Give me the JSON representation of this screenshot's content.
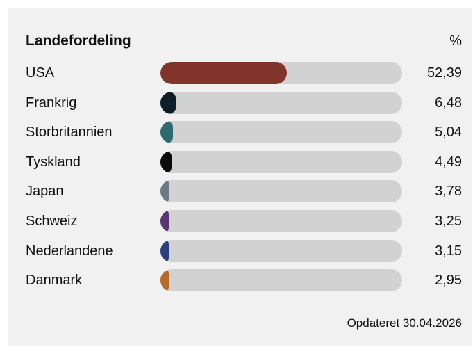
{
  "chart_data": {
    "type": "bar",
    "orientation": "horizontal",
    "title": "Landefordeling",
    "value_header": "%",
    "categories": [
      "USA",
      "Frankrig",
      "Storbritannien",
      "Tyskland",
      "Japan",
      "Schweiz",
      "Nederlandene",
      "Danmark"
    ],
    "values": [
      52.39,
      6.48,
      5.04,
      4.49,
      3.78,
      3.25,
      3.15,
      2.95
    ],
    "value_labels": [
      "52,39",
      "6,48",
      "5,04",
      "4,49",
      "3,78",
      "3,25",
      "3,15",
      "2,95"
    ],
    "colors": [
      "#82342a",
      "#0c1e2a",
      "#2c6b70",
      "#0b0b0b",
      "#6b7a86",
      "#5a3573",
      "#2b3f7a",
      "#b56a2a"
    ],
    "track_color": "#d2d2d2",
    "xlim": [
      0,
      100
    ],
    "grid": false
  },
  "footer": {
    "updated": "Opdateret 30.04.2026"
  }
}
